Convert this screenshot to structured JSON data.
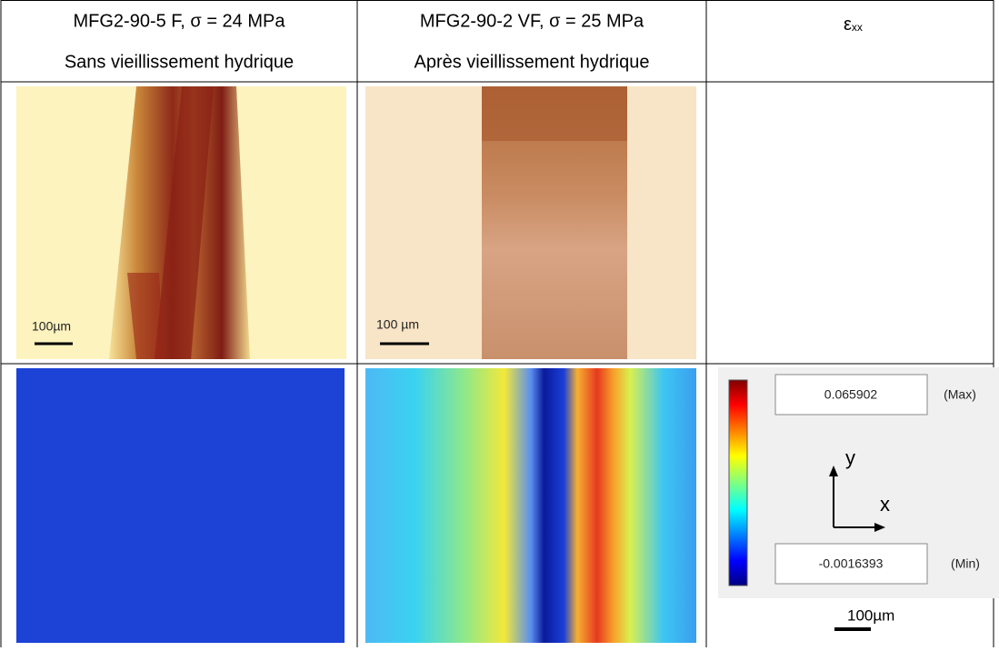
{
  "header": {
    "col1": {
      "line1": "MFG2-90-5 F, σ = 24 MPa",
      "line2": "Sans vieillissement hydrique"
    },
    "col2": {
      "line1": "MFG2-90-2 VF, σ = 25 MPa",
      "line2": "Après vieillissement hydrique"
    },
    "col3": {
      "symbol": "ε",
      "subscript": "xx"
    }
  },
  "images": {
    "photo_1": {
      "scale_bar": "100µm"
    },
    "photo_2": {
      "scale_bar": "100 µm"
    }
  },
  "colorbar": {
    "max": "0.065902",
    "max_label": "(Max)",
    "min": "-0.0016393",
    "min_label": "(Min)",
    "axis_y": "y",
    "axis_x": "x",
    "scale_bar": "100µm"
  }
}
